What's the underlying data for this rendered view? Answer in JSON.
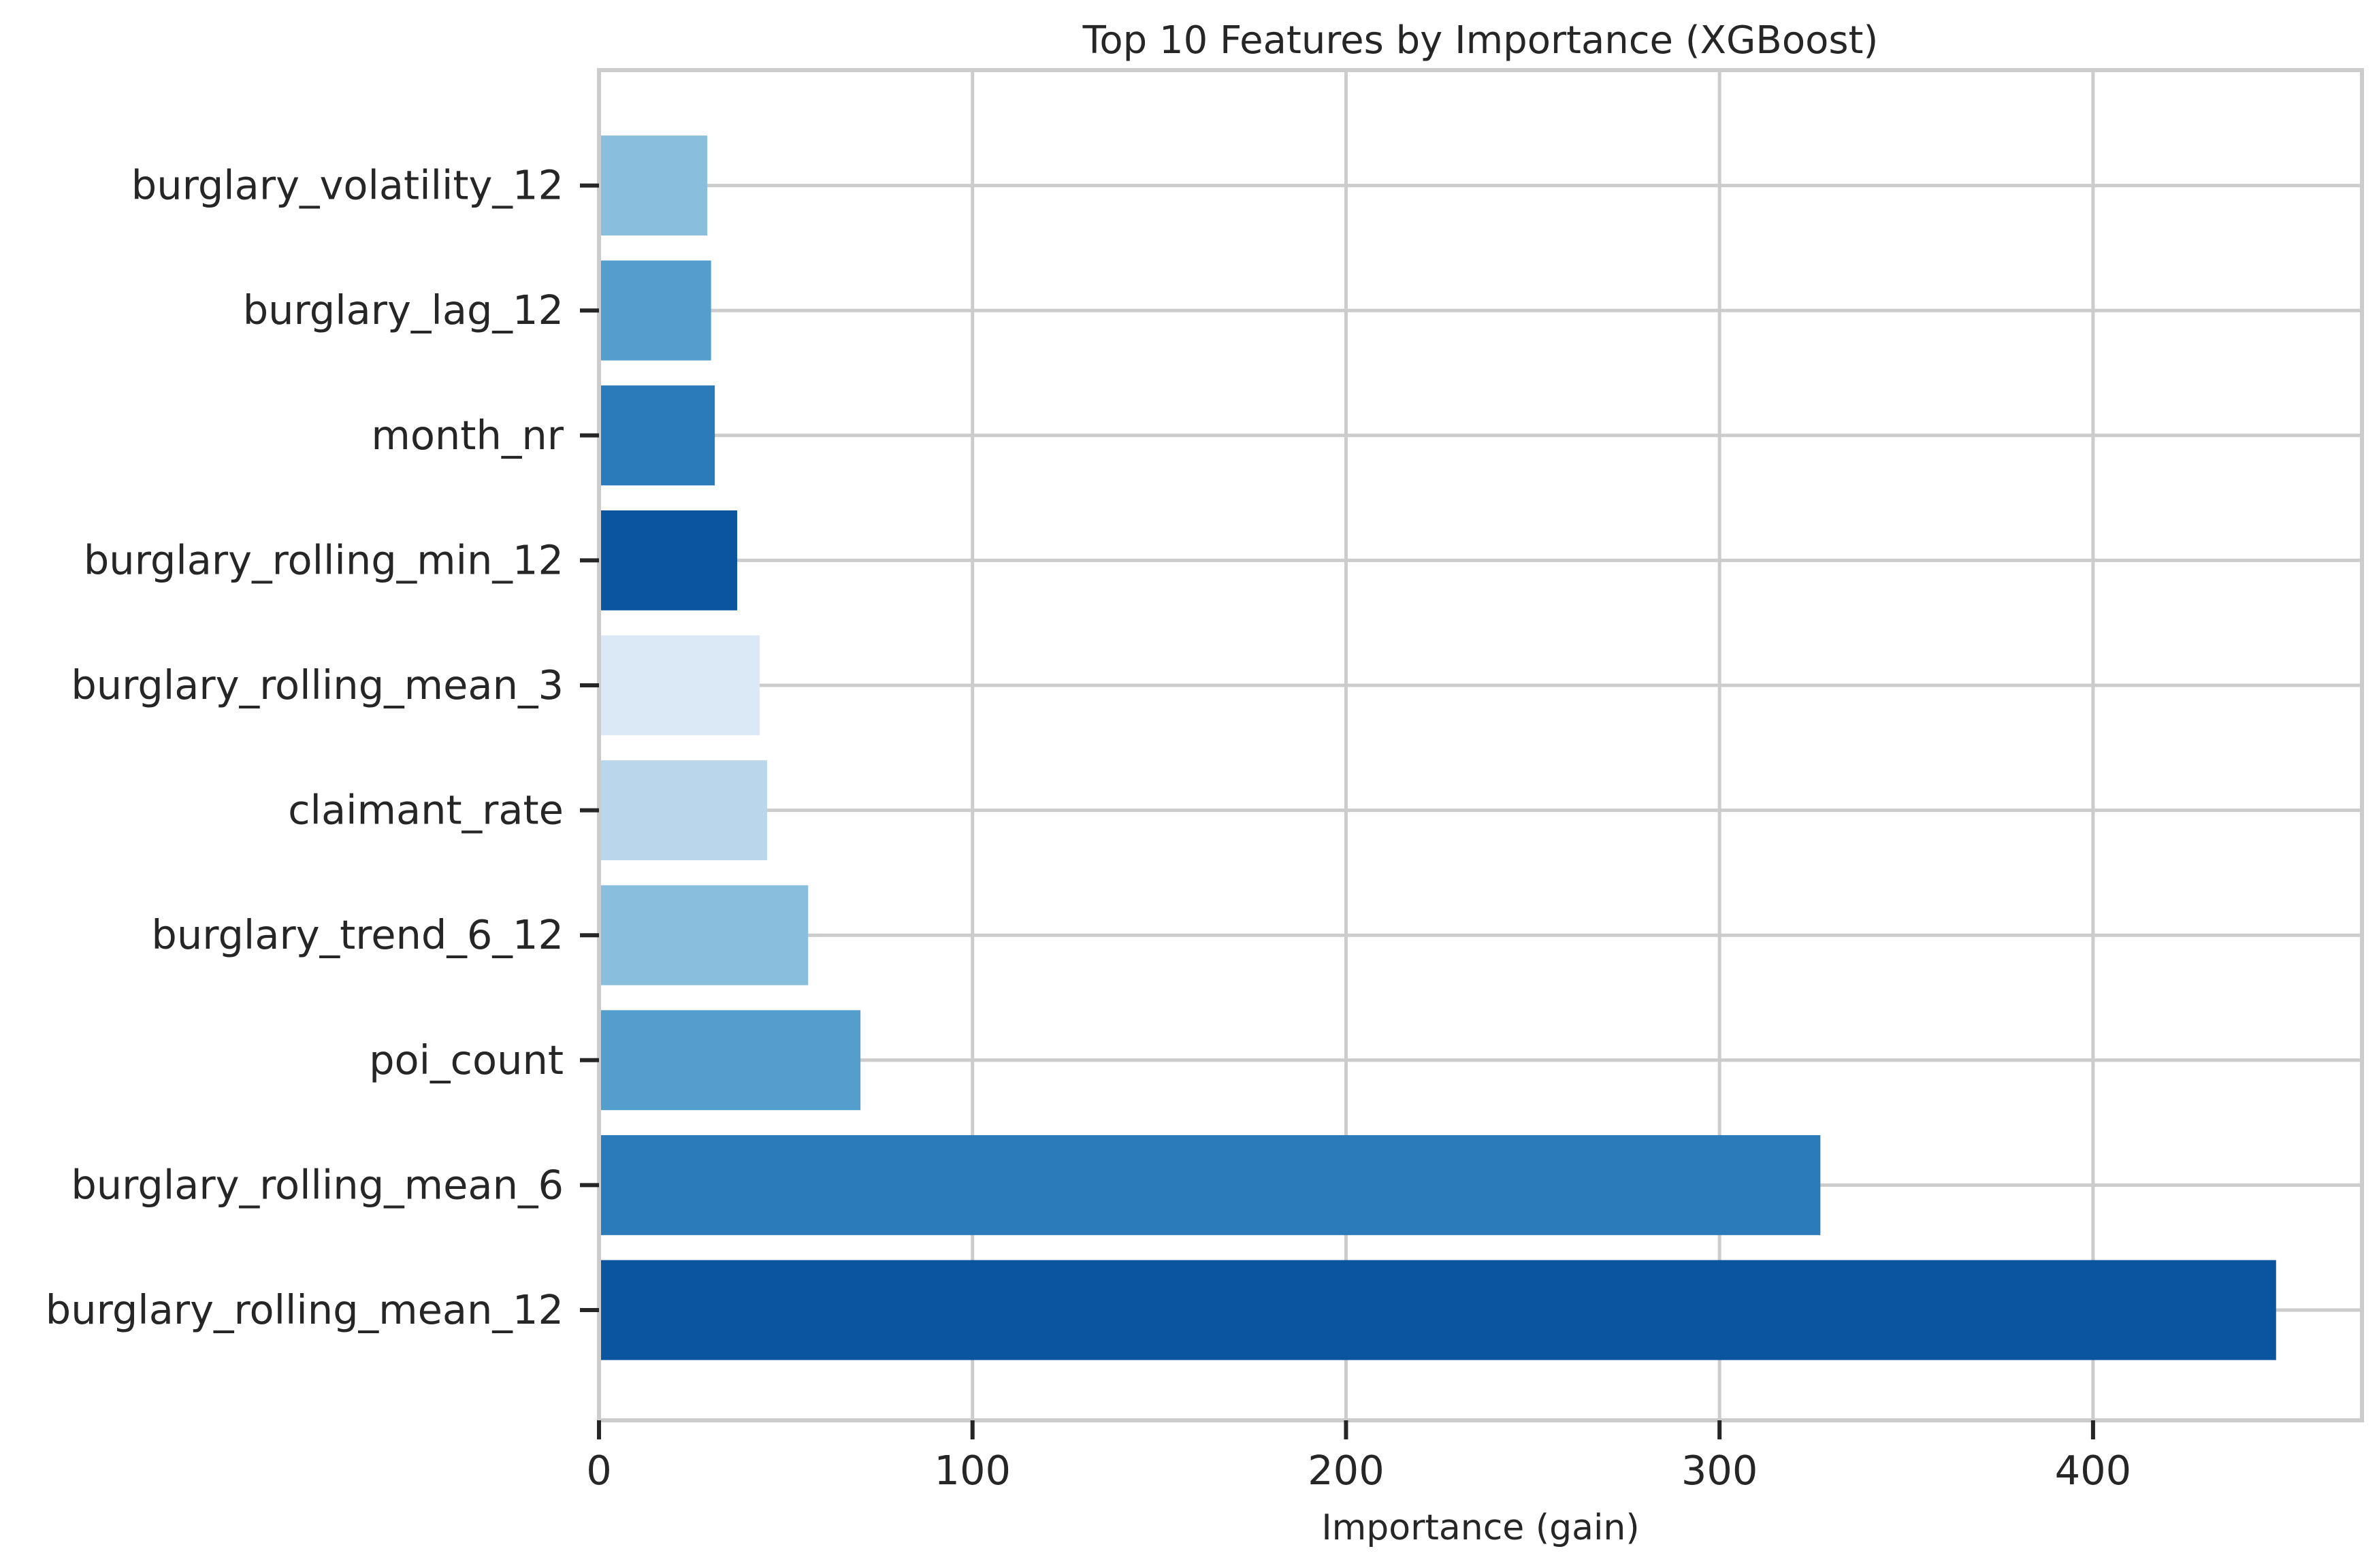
{
  "chart_data": {
    "type": "bar",
    "orientation": "horizontal",
    "title": "Top 10 Features by Importance (XGBoost)",
    "xlabel": "Importance (gain)",
    "ylabel": "",
    "xlim": [
      0,
      472
    ],
    "xticks": [
      0,
      100,
      200,
      300,
      400
    ],
    "xtick_labels": [
      "0",
      "100",
      "200",
      "300",
      "400"
    ],
    "grid": true,
    "legend": "none",
    "categories": [
      "burglary_rolling_mean_12",
      "burglary_rolling_mean_6",
      "poi_count",
      "burglary_trend_6_12",
      "claimant_rate",
      "burglary_rolling_mean_3",
      "burglary_rolling_min_12",
      "month_nr",
      "burglary_lag_12",
      "burglary_volatility_12"
    ],
    "values": [
      449,
      327,
      70,
      56,
      45,
      43,
      37,
      31,
      30,
      29
    ],
    "colors": [
      "#0b559f",
      "#2b7bba",
      "#539ecd",
      "#89bedc",
      "#bad6eb",
      "#dbe9f6",
      "#0b559f",
      "#2b7bba",
      "#539ecd",
      "#89bedc"
    ],
    "grid_color": "#cccccc",
    "text_color": "#262626"
  }
}
